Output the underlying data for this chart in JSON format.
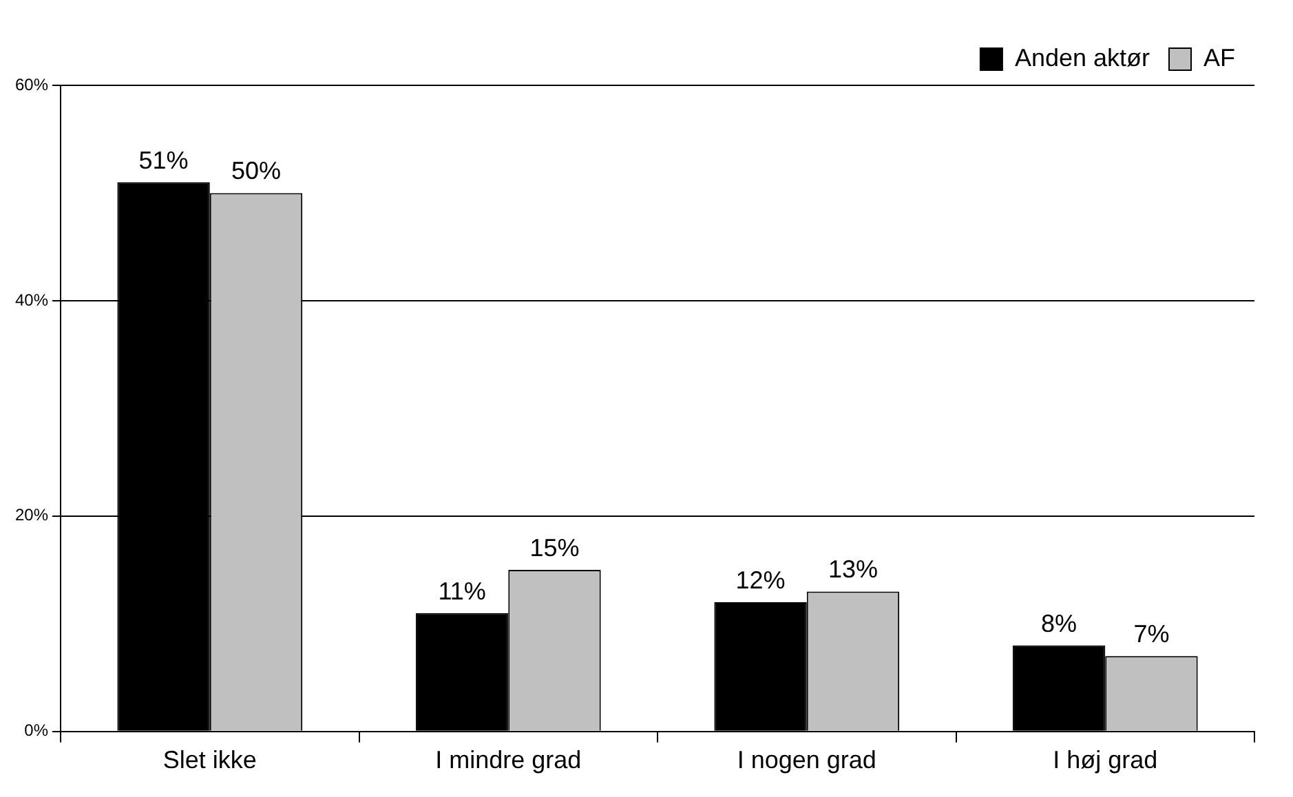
{
  "chart_data": {
    "type": "bar",
    "categories": [
      "Slet ikke",
      "I mindre grad",
      "I nogen grad",
      "I høj grad"
    ],
    "series": [
      {
        "name": "Anden aktør",
        "color": "#000000",
        "values": [
          51,
          11,
          12,
          8
        ],
        "value_labels": [
          "51%",
          "11%",
          "12%",
          "8%"
        ]
      },
      {
        "name": "AF",
        "color": "#c0c0c0",
        "values": [
          50,
          15,
          13,
          7
        ],
        "value_labels": [
          "50%",
          "15%",
          "13%",
          "7%"
        ]
      }
    ],
    "ylim": [
      0,
      60
    ],
    "yticks": [
      {
        "value": 0,
        "label": "0%"
      },
      {
        "value": 20,
        "label": "20%"
      },
      {
        "value": 40,
        "label": "40%"
      },
      {
        "value": 60,
        "label": "60%"
      }
    ],
    "grid": "y",
    "legend": "top right"
  }
}
